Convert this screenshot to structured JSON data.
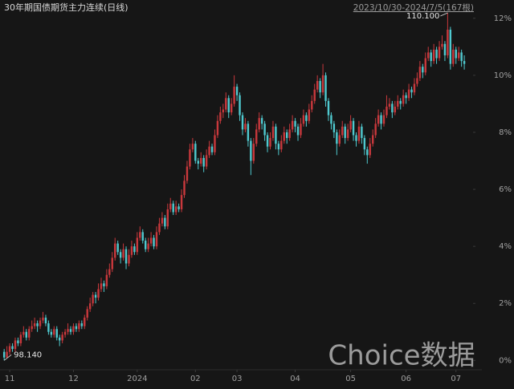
{
  "chart_data": {
    "type": "candlestick",
    "title": "30年期国债期货主力连续(日线)",
    "range_label": "2023/10/30-2024/7/5(167根)",
    "watermark": "Choice数据",
    "up_color": "#c8383c",
    "down_color": "#4fc9cf",
    "xlim": [
      -1.5,
      168
    ],
    "ylim": [
      -0.3,
      12.5
    ],
    "xticks": [
      {
        "value": 2,
        "label": "11"
      },
      {
        "value": 25,
        "label": "12"
      },
      {
        "value": 48,
        "label": "2024"
      },
      {
        "value": 69,
        "label": "02"
      },
      {
        "value": 84,
        "label": "03"
      },
      {
        "value": 105,
        "label": "04"
      },
      {
        "value": 125,
        "label": "05"
      },
      {
        "value": 145,
        "label": "06"
      },
      {
        "value": 163,
        "label": "07"
      }
    ],
    "yticks": [
      {
        "value": 0,
        "label": "0%"
      },
      {
        "value": 2,
        "label": "2%"
      },
      {
        "value": 4,
        "label": "4%"
      },
      {
        "value": 6,
        "label": "6%"
      },
      {
        "value": 8,
        "label": "8%"
      },
      {
        "value": 10,
        "label": "10%"
      },
      {
        "value": 12,
        "label": "12%"
      }
    ],
    "annotations": [
      {
        "text": "98.140",
        "x": 0,
        "y": 0.0
      },
      {
        "text": "110.100",
        "x": 160,
        "y": 12.19
      }
    ],
    "candles": [
      [
        0.3,
        0.4,
        0.0,
        0.1
      ],
      [
        0.1,
        0.5,
        0.1,
        0.3
      ],
      [
        0.3,
        0.6,
        0.2,
        0.5
      ],
      [
        0.5,
        0.6,
        0.3,
        0.4
      ],
      [
        0.4,
        0.8,
        0.3,
        0.7
      ],
      [
        0.7,
        0.8,
        0.5,
        0.6
      ],
      [
        0.6,
        1.0,
        0.5,
        0.9
      ],
      [
        0.9,
        1.2,
        0.8,
        1.0
      ],
      [
        1.0,
        1.1,
        0.7,
        0.8
      ],
      [
        0.8,
        1.2,
        0.7,
        1.1
      ],
      [
        1.1,
        1.4,
        1.0,
        1.2
      ],
      [
        1.2,
        1.5,
        1.1,
        1.3
      ],
      [
        1.3,
        1.4,
        1.0,
        1.2
      ],
      [
        1.2,
        1.5,
        1.1,
        1.4
      ],
      [
        1.4,
        1.7,
        1.3,
        1.5
      ],
      [
        1.5,
        1.6,
        1.2,
        1.3
      ],
      [
        1.3,
        1.4,
        0.9,
        1.0
      ],
      [
        1.0,
        1.1,
        0.8,
        0.9
      ],
      [
        0.9,
        1.2,
        0.8,
        1.1
      ],
      [
        1.1,
        1.2,
        0.7,
        0.8
      ],
      [
        0.8,
        0.9,
        0.5,
        0.7
      ],
      [
        0.7,
        1.0,
        0.6,
        0.9
      ],
      [
        0.9,
        1.1,
        0.8,
        1.0
      ],
      [
        1.0,
        1.3,
        0.9,
        1.1
      ],
      [
        1.1,
        1.2,
        0.9,
        1.0
      ],
      [
        1.0,
        1.3,
        0.9,
        1.2
      ],
      [
        1.2,
        1.3,
        1.0,
        1.1
      ],
      [
        1.1,
        1.4,
        1.0,
        1.3
      ],
      [
        1.3,
        1.4,
        1.1,
        1.2
      ],
      [
        1.2,
        1.6,
        1.1,
        1.5
      ],
      [
        1.5,
        1.9,
        1.4,
        1.8
      ],
      [
        1.8,
        2.2,
        1.7,
        2.0
      ],
      [
        2.0,
        2.4,
        1.9,
        2.3
      ],
      [
        2.3,
        2.4,
        2.0,
        2.2
      ],
      [
        2.2,
        2.7,
        2.1,
        2.5
      ],
      [
        2.5,
        2.9,
        2.4,
        2.7
      ],
      [
        2.7,
        2.8,
        2.4,
        2.6
      ],
      [
        2.6,
        3.2,
        2.5,
        3.0
      ],
      [
        3.0,
        3.4,
        2.9,
        3.2
      ],
      [
        3.2,
        3.8,
        3.1,
        3.6
      ],
      [
        3.6,
        4.3,
        3.5,
        4.1
      ],
      [
        4.1,
        4.2,
        3.7,
        3.8
      ],
      [
        3.8,
        3.9,
        3.4,
        3.6
      ],
      [
        3.6,
        4.1,
        3.5,
        3.9
      ],
      [
        3.9,
        4.0,
        3.2,
        3.4
      ],
      [
        3.4,
        3.9,
        3.3,
        3.7
      ],
      [
        3.7,
        4.2,
        3.6,
        4.0
      ],
      [
        4.0,
        4.1,
        3.7,
        3.8
      ],
      [
        3.8,
        4.5,
        3.7,
        4.3
      ],
      [
        4.3,
        4.7,
        4.2,
        4.5
      ],
      [
        4.5,
        4.6,
        4.1,
        4.2
      ],
      [
        4.2,
        4.3,
        3.8,
        3.9
      ],
      [
        3.9,
        4.3,
        3.8,
        4.1
      ],
      [
        4.1,
        4.5,
        4.0,
        4.3
      ],
      [
        4.3,
        4.4,
        3.9,
        4.0
      ],
      [
        4.0,
        4.7,
        3.9,
        4.5
      ],
      [
        4.5,
        5.0,
        4.4,
        4.8
      ],
      [
        4.8,
        5.2,
        4.7,
        5.0
      ],
      [
        5.0,
        5.1,
        4.6,
        4.7
      ],
      [
        4.7,
        5.5,
        4.6,
        5.3
      ],
      [
        5.3,
        5.7,
        5.2,
        5.5
      ],
      [
        5.5,
        5.6,
        5.1,
        5.2
      ],
      [
        5.2,
        5.6,
        5.1,
        5.4
      ],
      [
        5.4,
        5.5,
        5.2,
        5.3
      ],
      [
        5.3,
        6.0,
        5.2,
        5.8
      ],
      [
        5.8,
        6.5,
        5.7,
        6.3
      ],
      [
        6.3,
        7.0,
        6.2,
        6.8
      ],
      [
        6.8,
        7.6,
        6.7,
        7.4
      ],
      [
        7.4,
        7.8,
        7.3,
        7.6
      ],
      [
        7.6,
        7.7,
        6.9,
        7.0
      ],
      [
        7.0,
        7.1,
        6.7,
        6.9
      ],
      [
        6.9,
        7.3,
        6.8,
        7.1
      ],
      [
        7.1,
        7.2,
        6.6,
        6.8
      ],
      [
        6.8,
        7.4,
        6.7,
        7.2
      ],
      [
        7.2,
        7.7,
        7.1,
        7.5
      ],
      [
        7.5,
        7.6,
        7.2,
        7.3
      ],
      [
        7.3,
        8.1,
        7.2,
        7.9
      ],
      [
        7.9,
        8.6,
        7.8,
        8.4
      ],
      [
        8.4,
        8.9,
        8.3,
        8.7
      ],
      [
        8.7,
        9.0,
        8.5,
        8.8
      ],
      [
        8.8,
        9.4,
        8.7,
        9.2
      ],
      [
        9.2,
        9.3,
        8.5,
        8.7
      ],
      [
        8.7,
        9.2,
        8.6,
        9.0
      ],
      [
        9.0,
        10.0,
        8.9,
        9.6
      ],
      [
        9.6,
        9.7,
        9.1,
        9.3
      ],
      [
        9.3,
        9.4,
        8.4,
        8.6
      ],
      [
        8.6,
        8.7,
        7.9,
        8.1
      ],
      [
        8.1,
        8.5,
        8.0,
        8.3
      ],
      [
        8.3,
        8.4,
        7.5,
        7.7
      ],
      [
        7.7,
        7.8,
        6.5,
        7.0
      ],
      [
        7.0,
        7.8,
        6.9,
        7.6
      ],
      [
        7.6,
        8.3,
        7.5,
        8.1
      ],
      [
        8.1,
        8.7,
        8.0,
        8.5
      ],
      [
        8.5,
        8.6,
        8.1,
        8.3
      ],
      [
        8.3,
        8.4,
        7.7,
        7.9
      ],
      [
        7.9,
        8.0,
        7.3,
        7.5
      ],
      [
        7.5,
        8.0,
        7.4,
        7.8
      ],
      [
        7.8,
        8.4,
        7.7,
        8.2
      ],
      [
        8.2,
        8.3,
        7.4,
        7.6
      ],
      [
        7.6,
        7.7,
        7.2,
        7.4
      ],
      [
        7.4,
        7.9,
        7.3,
        7.7
      ],
      [
        7.7,
        8.2,
        7.6,
        8.0
      ],
      [
        8.0,
        8.1,
        7.6,
        7.8
      ],
      [
        7.8,
        8.3,
        7.7,
        8.1
      ],
      [
        8.1,
        8.6,
        8.0,
        8.4
      ],
      [
        8.4,
        8.5,
        8.0,
        8.2
      ],
      [
        8.2,
        8.3,
        7.7,
        7.9
      ],
      [
        7.9,
        8.5,
        7.8,
        8.3
      ],
      [
        8.3,
        8.8,
        8.2,
        8.6
      ],
      [
        8.6,
        8.7,
        8.2,
        8.4
      ],
      [
        8.4,
        9.0,
        8.3,
        8.8
      ],
      [
        8.8,
        9.3,
        8.7,
        9.1
      ],
      [
        9.1,
        9.7,
        9.0,
        9.5
      ],
      [
        9.5,
        10.0,
        9.4,
        9.8
      ],
      [
        9.8,
        9.9,
        9.2,
        9.4
      ],
      [
        9.4,
        10.4,
        9.3,
        10.0
      ],
      [
        10.0,
        10.1,
        8.9,
        9.1
      ],
      [
        9.1,
        9.2,
        8.4,
        8.6
      ],
      [
        8.6,
        8.7,
        8.1,
        8.3
      ],
      [
        8.3,
        8.4,
        7.8,
        8.0
      ],
      [
        8.0,
        8.1,
        7.2,
        7.6
      ],
      [
        7.6,
        8.1,
        7.5,
        7.9
      ],
      [
        7.9,
        8.4,
        7.8,
        8.2
      ],
      [
        8.2,
        8.3,
        7.6,
        7.8
      ],
      [
        7.8,
        8.3,
        7.7,
        8.1
      ],
      [
        8.1,
        8.6,
        8.0,
        8.4
      ],
      [
        8.4,
        8.5,
        7.7,
        7.9
      ],
      [
        7.9,
        8.0,
        7.5,
        7.7
      ],
      [
        7.7,
        8.4,
        7.6,
        8.2
      ],
      [
        8.2,
        8.3,
        7.6,
        7.8
      ],
      [
        7.8,
        7.9,
        7.2,
        7.4
      ],
      [
        7.4,
        7.5,
        6.9,
        7.2
      ],
      [
        7.2,
        7.8,
        7.1,
        7.6
      ],
      [
        7.6,
        8.1,
        7.5,
        7.9
      ],
      [
        7.9,
        8.5,
        7.8,
        8.3
      ],
      [
        8.3,
        8.8,
        8.2,
        8.6
      ],
      [
        8.6,
        8.7,
        8.1,
        8.3
      ],
      [
        8.3,
        8.8,
        8.2,
        8.6
      ],
      [
        8.6,
        9.3,
        8.5,
        8.9
      ],
      [
        8.9,
        9.2,
        8.8,
        9.0
      ],
      [
        9.0,
        9.1,
        8.5,
        8.7
      ],
      [
        8.7,
        9.1,
        8.6,
        8.9
      ],
      [
        8.9,
        9.3,
        8.8,
        9.1
      ],
      [
        9.1,
        9.2,
        8.8,
        9.0
      ],
      [
        9.0,
        9.5,
        8.9,
        9.3
      ],
      [
        9.3,
        9.4,
        9.0,
        9.2
      ],
      [
        9.2,
        9.7,
        9.1,
        9.5
      ],
      [
        9.5,
        9.6,
        9.2,
        9.4
      ],
      [
        9.4,
        9.9,
        9.3,
        9.7
      ],
      [
        9.7,
        10.1,
        9.6,
        9.9
      ],
      [
        9.9,
        10.5,
        9.8,
        10.3
      ],
      [
        10.3,
        10.4,
        9.9,
        10.1
      ],
      [
        10.1,
        10.8,
        10.0,
        10.6
      ],
      [
        10.6,
        11.0,
        10.5,
        10.8
      ],
      [
        10.8,
        10.9,
        10.3,
        10.5
      ],
      [
        10.5,
        11.1,
        10.4,
        10.9
      ],
      [
        10.9,
        11.0,
        10.4,
        10.6
      ],
      [
        10.6,
        11.2,
        10.5,
        11.0
      ],
      [
        11.0,
        11.4,
        10.9,
        11.1
      ],
      [
        11.1,
        11.2,
        10.5,
        10.7
      ],
      [
        10.7,
        12.19,
        10.6,
        11.6
      ],
      [
        11.6,
        11.7,
        10.2,
        10.4
      ],
      [
        10.4,
        11.1,
        10.3,
        10.9
      ],
      [
        10.9,
        11.0,
        10.4,
        10.6
      ],
      [
        10.6,
        11.0,
        10.5,
        10.8
      ],
      [
        10.8,
        10.9,
        10.3,
        10.5
      ],
      [
        10.5,
        10.7,
        10.2,
        10.4
      ]
    ]
  }
}
